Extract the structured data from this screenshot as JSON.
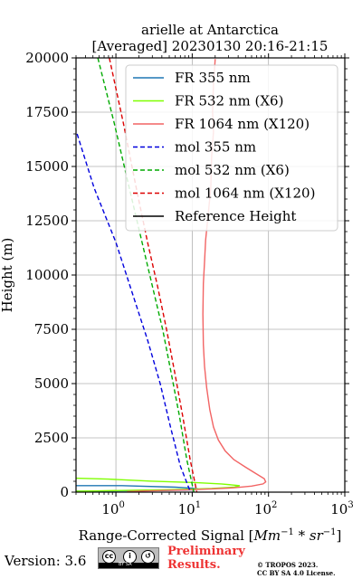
{
  "chart_data": {
    "type": "line",
    "title": "arielle at Antarctica",
    "subtitle": "[Averaged] 20230130 20:16-21:15",
    "xlabel_prefix": "Range-Corrected Signal [",
    "xlabel_math": "Mm",
    "xlabel_sup1": "−1",
    "xlabel_mid": " * sr",
    "xlabel_sup2": "−1",
    "xlabel_suffix": "]",
    "ylabel": "Height (m)",
    "xscale": "log",
    "xlim": [
      0.3,
      1000
    ],
    "ylim": [
      0,
      20000
    ],
    "xticks": [
      {
        "value": 1,
        "base": "10",
        "exp": "0"
      },
      {
        "value": 10,
        "base": "10",
        "exp": "1"
      },
      {
        "value": 100,
        "base": "10",
        "exp": "2"
      },
      {
        "value": 1000,
        "base": "10",
        "exp": "3"
      }
    ],
    "yticks": [
      0,
      2500,
      5000,
      7500,
      10000,
      12500,
      15000,
      17500,
      20000
    ],
    "grid": true,
    "legend_position": "top-right",
    "series": [
      {
        "name": "FR 355 nm",
        "color": "#1f77b4",
        "style": "solid",
        "x": [
          0.3,
          1.2,
          6,
          10,
          12,
          10,
          7,
          3.5,
          1.5,
          0.5,
          0.3
        ],
        "y": [
          300,
          300,
          230,
          180,
          150,
          110,
          90,
          70,
          60,
          50,
          40
        ]
      },
      {
        "name": "FR 532 nm (X6)",
        "color": "#7fff00",
        "style": "solid",
        "x": [
          0.3,
          0.8,
          2.8,
          11,
          24,
          42,
          35,
          18,
          8,
          4,
          2,
          0.6,
          0.3
        ],
        "y": [
          640,
          600,
          510,
          440,
          380,
          300,
          230,
          170,
          130,
          110,
          90,
          60,
          40
        ]
      },
      {
        "name": "FR 1064 nm (X120)",
        "color": "#f26464",
        "style": "solid",
        "x": [
          20,
          19,
          18.5,
          19,
          18,
          17.5,
          16,
          15,
          14.5,
          14,
          13.8,
          14,
          14.5,
          15.5,
          17,
          19,
          22,
          27,
          35,
          50,
          68,
          88,
          92,
          85,
          60,
          35,
          18,
          9,
          4.5,
          2.2,
          1.4
        ],
        "y": [
          19950,
          18800,
          17500,
          16600,
          15500,
          14000,
          12600,
          11600,
          10600,
          9600,
          8200,
          6800,
          5800,
          4800,
          3800,
          3000,
          2400,
          1900,
          1500,
          1150,
          860,
          620,
          470,
          380,
          280,
          200,
          150,
          110,
          80,
          50,
          20
        ]
      },
      {
        "name": "mol 355 nm",
        "color": "#0000dd",
        "style": "dashed",
        "x": [
          0.31,
          0.52,
          1.0,
          1.7,
          2.6,
          3.8,
          5.2,
          7.0,
          9.5
        ],
        "y": [
          16500,
          14000,
          11500,
          9000,
          7000,
          5000,
          3000,
          1200,
          0
        ]
      },
      {
        "name": "mol 532 nm (X6)",
        "color": "#00aa00",
        "style": "dashed",
        "x": [
          0.58,
          0.95,
          1.5,
          2.2,
          3.0,
          4.1,
          5.3,
          6.8,
          8.5,
          10.5
        ],
        "y": [
          20000,
          17000,
          14000,
          11500,
          9500,
          7500,
          5500,
          3500,
          1500,
          0
        ]
      },
      {
        "name": "mol 1064 nm (X120)",
        "color": "#dd0000",
        "style": "dashed",
        "x": [
          0.82,
          1.25,
          1.85,
          2.6,
          3.5,
          4.6,
          5.9,
          7.5,
          9.4,
          11.5
        ],
        "y": [
          20000,
          17000,
          14000,
          11500,
          9500,
          7500,
          5500,
          3500,
          1500,
          0
        ]
      },
      {
        "name": "Reference Height",
        "color": "#000000",
        "style": "solid",
        "x": [],
        "y": []
      }
    ]
  },
  "footer": {
    "version": "Version: 3.6",
    "cc_text": "BY SA",
    "preliminary_line1": "Preliminary",
    "preliminary_line2": "Results.",
    "copyright_line1": "© TROPOS 2023.",
    "copyright_line2": "CC BY SA 4.0 License."
  }
}
